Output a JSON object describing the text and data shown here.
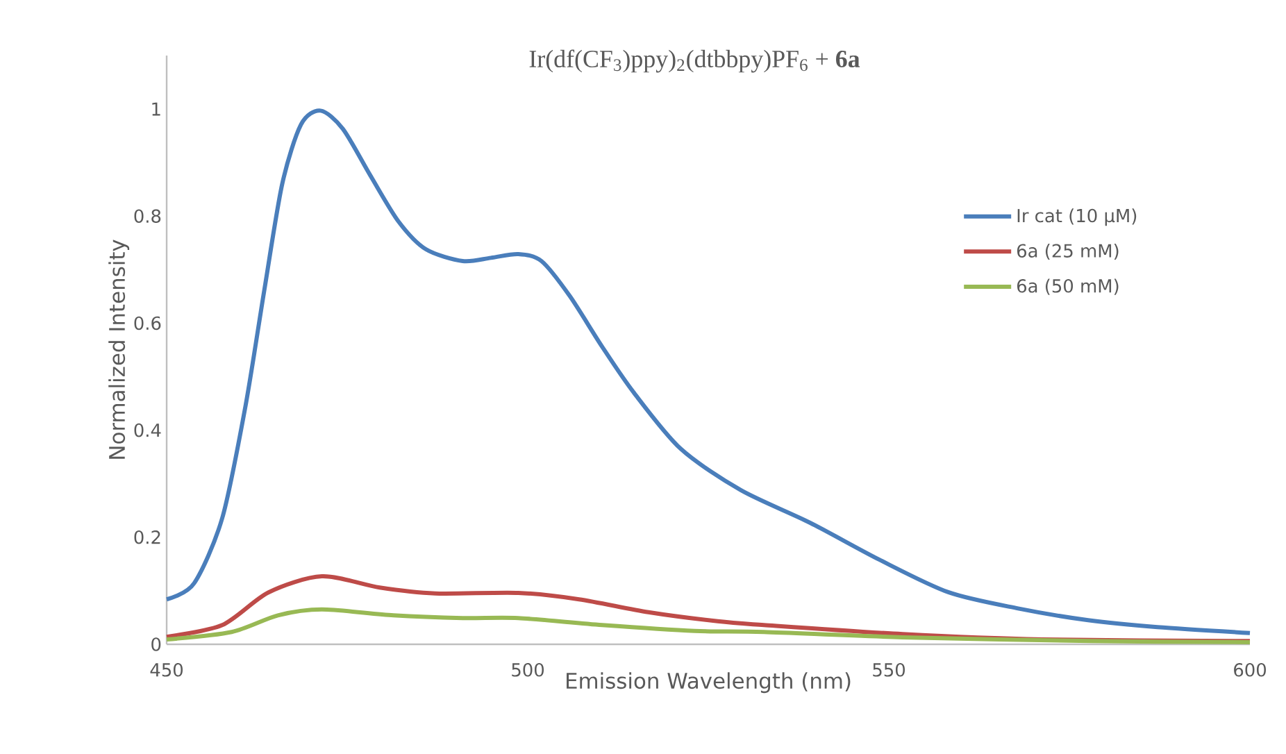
{
  "chart_data": {
    "type": "line",
    "title": "Ir(df(CF$_{3}$)ppy)$_{2}$(dtbbpy)PF$_{6}$ + **6a**",
    "xlabel": "Emission Wavelength (nm)",
    "ylabel": "Normalized Intensity",
    "xlim": [
      450,
      600
    ],
    "ylim": [
      0,
      1.1
    ],
    "xticks": [
      450,
      500,
      550,
      600
    ],
    "yticks": [
      0,
      0.2,
      0.4,
      0.6,
      0.8,
      1
    ],
    "legend": "top right",
    "series": [
      {
        "name": "Ir cat (10 μM)",
        "color": "#4a7ebb",
        "x": [
          450,
          453.8,
          457.7,
          460.9,
          463.5,
          466.0,
          468.6,
          471.3,
          474.4,
          478.2,
          482.1,
          485.9,
          491.0,
          494.9,
          498.7,
          501.9,
          505.8,
          510.3,
          514.7,
          521.2,
          529.5,
          539.1,
          548.7,
          558.3,
          567.9,
          577.6,
          587.2,
          600
        ],
        "values": [
          0.084,
          0.114,
          0.236,
          0.444,
          0.66,
          0.86,
          0.971,
          0.997,
          0.963,
          0.876,
          0.79,
          0.738,
          0.716,
          0.722,
          0.729,
          0.716,
          0.651,
          0.556,
          0.47,
          0.365,
          0.288,
          0.227,
          0.158,
          0.097,
          0.067,
          0.045,
          0.032,
          0.021
        ]
      },
      {
        "name": "6a (25 mM)",
        "color": "#be4b48",
        "x": [
          450,
          457.7,
          464.1,
          471.5,
          479.5,
          487.2,
          498.7,
          507.1,
          516.7,
          526.3,
          532.7,
          551.9,
          571.2,
          600
        ],
        "values": [
          0.014,
          0.036,
          0.097,
          0.127,
          0.106,
          0.095,
          0.096,
          0.084,
          0.06,
          0.043,
          0.036,
          0.019,
          0.009,
          0.006
        ]
      },
      {
        "name": "6a (50 mM)",
        "color": "#98b954",
        "x": [
          450,
          459,
          465.4,
          471.5,
          481.4,
          491,
          498.7,
          510.3,
          523.1,
          532.7,
          551.9,
          578,
          600
        ],
        "values": [
          0.009,
          0.023,
          0.054,
          0.065,
          0.054,
          0.049,
          0.049,
          0.036,
          0.025,
          0.023,
          0.013,
          0.006,
          0.004
        ]
      }
    ]
  }
}
